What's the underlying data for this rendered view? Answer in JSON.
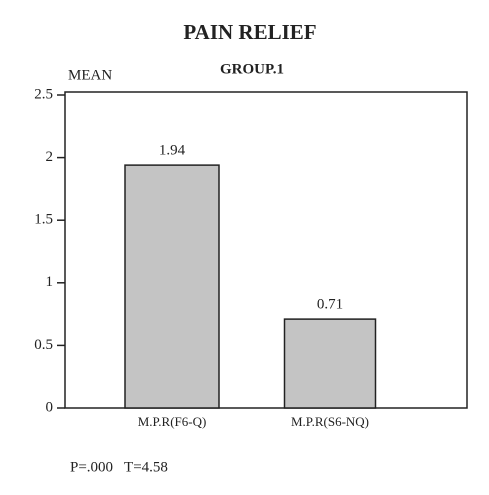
{
  "chart_data": {
    "type": "bar",
    "title": "PAIN RELIEF",
    "subtitle": "GROUP.1",
    "y_label": "MEAN",
    "categories": [
      "M.P.R(F6-Q)",
      "M.P.R(S6-NQ)"
    ],
    "values": [
      1.94,
      0.71
    ],
    "color": "#c4c4c4",
    "ylim": [
      0,
      2.5
    ],
    "yticks": [
      0,
      0.5,
      1,
      1.5,
      2,
      2.5
    ],
    "grid": false,
    "annotation": "P=.000   T=4.58"
  }
}
